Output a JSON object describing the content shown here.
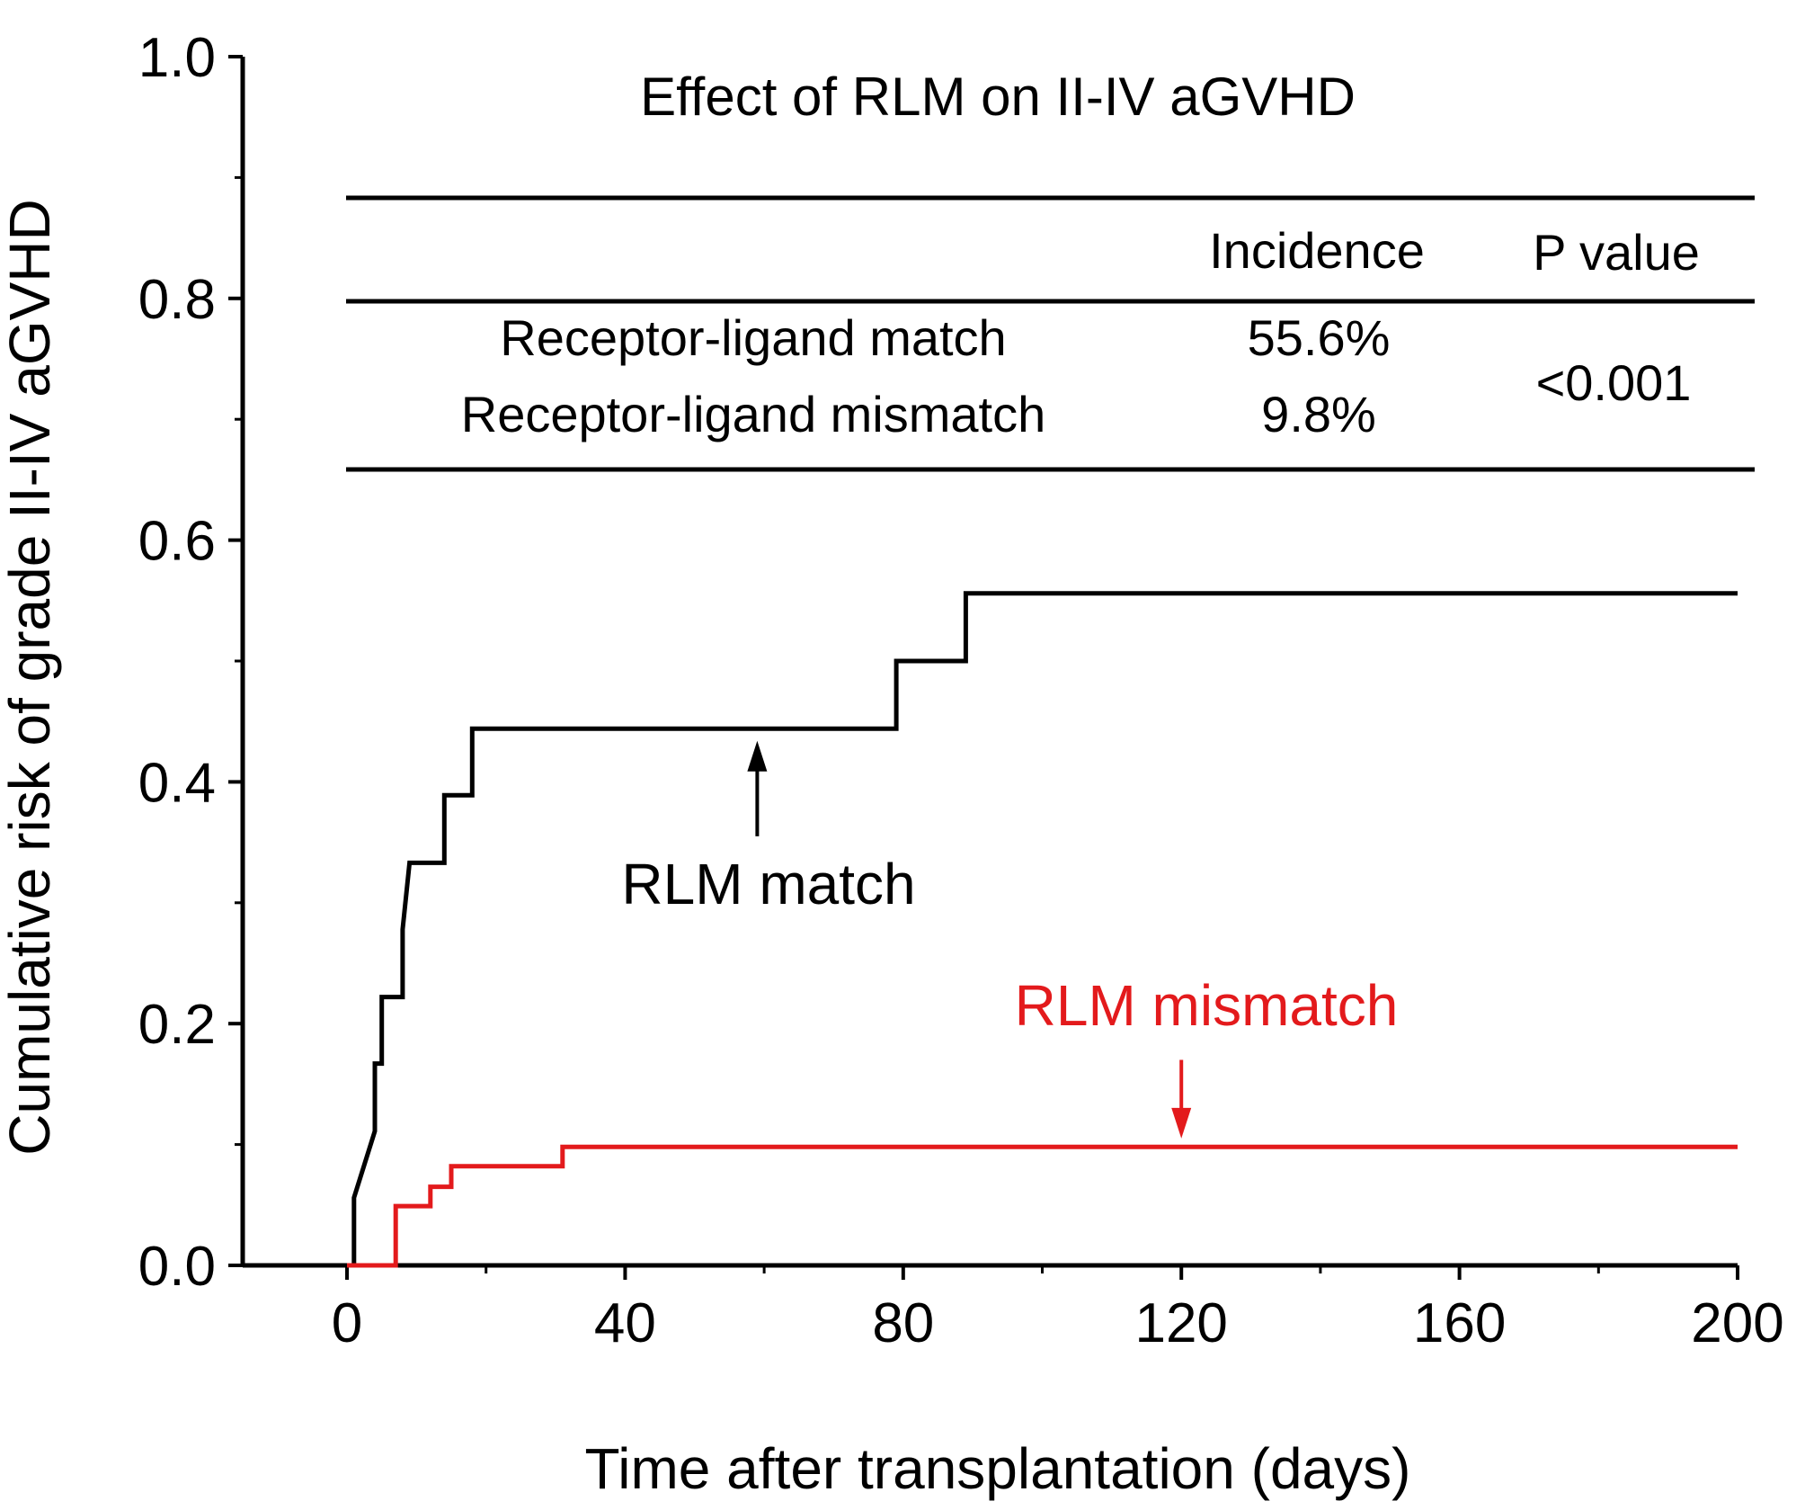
{
  "chart_data": {
    "type": "line",
    "step": true,
    "title": "Effect of RLM on II-IV aGVHD",
    "xlabel": "Time after transplantation (days)",
    "ylabel": "Cumulative risk of grade II-IV aGVHD",
    "xlim": [
      -15,
      200
    ],
    "ylim": [
      0,
      1.0
    ],
    "xticks": [
      0,
      40,
      80,
      120,
      160,
      200
    ],
    "xtick_labels": [
      "0",
      "40",
      "80",
      "120",
      "160",
      "200"
    ],
    "xminor_ticks": [
      20,
      60,
      100,
      140,
      180
    ],
    "yticks": [
      0.0,
      0.2,
      0.4,
      0.6,
      0.8,
      1.0
    ],
    "ytick_labels": [
      "0.0",
      "0.2",
      "0.4",
      "0.6",
      "0.8",
      "1.0"
    ],
    "yminor_ticks": [
      0.1,
      0.3,
      0.5,
      0.7,
      0.9
    ],
    "series": [
      {
        "name": "RLM match",
        "color": "#000000",
        "x": [
          0,
          1,
          1,
          4,
          4,
          5,
          5,
          8,
          8,
          9,
          9,
          14,
          14,
          18,
          18,
          79,
          79,
          89,
          89,
          200
        ],
        "y": [
          0,
          0,
          0.056,
          0.111,
          0.167,
          0.167,
          0.222,
          0.222,
          0.278,
          0.333,
          0.333,
          0.333,
          0.389,
          0.389,
          0.444,
          0.444,
          0.5,
          0.5,
          0.556,
          0.556
        ]
      },
      {
        "name": "RLM mismatch",
        "color": "#e31a1c",
        "x": [
          0,
          7,
          7,
          12,
          12,
          15,
          15,
          31,
          31,
          200
        ],
        "y": [
          0,
          0,
          0.049,
          0.049,
          0.065,
          0.065,
          0.082,
          0.082,
          0.098,
          0.098
        ]
      }
    ],
    "annotations": [
      {
        "text": "RLM match",
        "color": "#000000",
        "arrow_x": 59,
        "arrow_tip_y": 0.434,
        "arrow_tail_y": 0.355
      },
      {
        "text": "RLM mismatch",
        "color": "#e31a1c",
        "arrow_x": 120,
        "arrow_tip_y": 0.105,
        "arrow_tail_y": 0.17
      }
    ],
    "inset_table": {
      "headers": [
        "",
        "Incidence",
        "P value"
      ],
      "rows": [
        [
          "Receptor-ligand match",
          "55.6%"
        ],
        [
          "Receptor-ligand mismatch",
          "9.8%"
        ]
      ],
      "p_value": "<0.001"
    }
  }
}
